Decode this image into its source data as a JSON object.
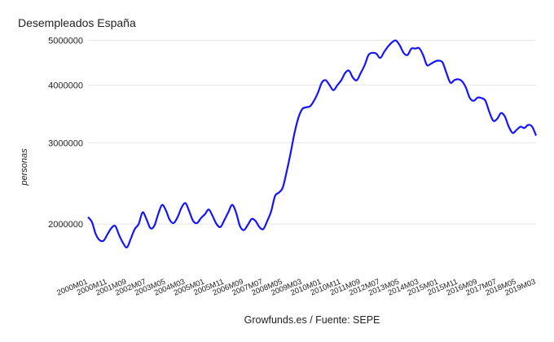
{
  "chart_data": {
    "type": "line",
    "title": "Desempleados España",
    "xlabel": "Growfunds.es / Fuente: SEPE",
    "ylabel": "personas",
    "y_scale": "log",
    "ylim": [
      1600000,
      5200000
    ],
    "xlim": [
      "2000M01",
      "2019M03"
    ],
    "grid": true,
    "legend": "none",
    "line_color": "#1414ff",
    "y_ticks": [
      {
        "value": 2000000,
        "label": "2000000"
      },
      {
        "value": 3000000,
        "label": "3000000"
      },
      {
        "value": 4000000,
        "label": "4000000"
      },
      {
        "value": 5000000,
        "label": "5000000"
      }
    ],
    "x_ticks": [
      "2000M01",
      "2000M11",
      "2001M09",
      "2002M07",
      "2003M05",
      "2004M03",
      "2005M01",
      "2005M11",
      "2006M09",
      "2007M07",
      "2008M05",
      "2009M03",
      "2010M01",
      "2010M11",
      "2011M09",
      "2012M07",
      "2013M05",
      "2014M03",
      "2015M01",
      "2015M11",
      "2016M09",
      "2017M07",
      "2018M05",
      "2019M03"
    ],
    "series": [
      {
        "x": [
          "2000M01",
          "2000M03",
          "2000M05",
          "2000M07",
          "2000M09",
          "2000M11",
          "2001M01",
          "2001M03",
          "2001M05",
          "2001M07",
          "2001M09",
          "2001M11",
          "2002M01",
          "2002M03",
          "2002M05",
          "2002M07",
          "2002M09",
          "2002M11",
          "2003M01",
          "2003M03",
          "2003M05",
          "2003M07",
          "2003M09",
          "2003M11",
          "2004M01",
          "2004M03",
          "2004M05",
          "2004M07",
          "2004M09",
          "2004M11",
          "2005M01",
          "2005M03",
          "2005M05",
          "2005M07",
          "2005M09",
          "2005M11",
          "2006M01",
          "2006M03",
          "2006M05",
          "2006M07",
          "2006M09",
          "2006M11",
          "2007M01",
          "2007M03",
          "2007M05",
          "2007M07",
          "2007M09",
          "2007M11",
          "2008M01",
          "2008M03",
          "2008M05",
          "2008M07",
          "2008M09",
          "2008M11",
          "2009M01",
          "2009M03",
          "2009M05",
          "2009M07",
          "2009M09",
          "2009M11",
          "2010M01",
          "2010M03",
          "2010M05",
          "2010M07",
          "2010M09",
          "2010M11",
          "2011M01",
          "2011M03",
          "2011M05",
          "2011M07",
          "2011M09",
          "2011M11",
          "2012M01",
          "2012M03",
          "2012M05",
          "2012M07",
          "2012M09",
          "2012M11",
          "2013M01",
          "2013M03",
          "2013M05",
          "2013M07",
          "2013M09",
          "2013M11",
          "2014M01",
          "2014M03",
          "2014M05",
          "2014M07",
          "2014M09",
          "2014M11",
          "2015M01",
          "2015M03",
          "2015M05",
          "2015M07",
          "2015M09",
          "2015M11",
          "2016M01",
          "2016M03",
          "2016M05",
          "2016M07",
          "2016M09",
          "2016M11",
          "2017M01",
          "2017M03",
          "2017M05",
          "2017M07",
          "2017M09",
          "2017M11",
          "2018M01",
          "2018M03",
          "2018M05",
          "2018M07",
          "2018M09",
          "2018M11",
          "2019M01",
          "2019M03"
        ],
        "values": [
          2070000,
          2020000,
          1900000,
          1845000,
          1840000,
          1900000,
          1960000,
          1980000,
          1890000,
          1820000,
          1780000,
          1860000,
          1950000,
          2000000,
          2120000,
          2050000,
          1960000,
          1980000,
          2100000,
          2200000,
          2140000,
          2040000,
          2010000,
          2070000,
          2170000,
          2220000,
          2130000,
          2030000,
          2010000,
          2060000,
          2100000,
          2150000,
          2080000,
          2000000,
          1970000,
          2040000,
          2120000,
          2200000,
          2120000,
          1980000,
          1940000,
          1990000,
          2050000,
          2030000,
          1970000,
          1950000,
          2030000,
          2130000,
          2300000,
          2340000,
          2400000,
          2600000,
          2850000,
          3150000,
          3400000,
          3550000,
          3580000,
          3600000,
          3700000,
          3850000,
          4050000,
          4100000,
          4000000,
          3900000,
          4000000,
          4100000,
          4250000,
          4300000,
          4150000,
          4100000,
          4250000,
          4420000,
          4650000,
          4700000,
          4680000,
          4580000,
          4720000,
          4850000,
          4950000,
          5000000,
          4880000,
          4700000,
          4650000,
          4800000,
          4800000,
          4810000,
          4650000,
          4420000,
          4450000,
          4500000,
          4520000,
          4480000,
          4250000,
          4050000,
          4100000,
          4120000,
          4080000,
          3950000,
          3750000,
          3700000,
          3760000,
          3750000,
          3700000,
          3500000,
          3350000,
          3380000,
          3480000,
          3420000,
          3250000,
          3150000,
          3200000,
          3250000,
          3230000,
          3280000,
          3250000,
          3110000
        ]
      }
    ]
  }
}
